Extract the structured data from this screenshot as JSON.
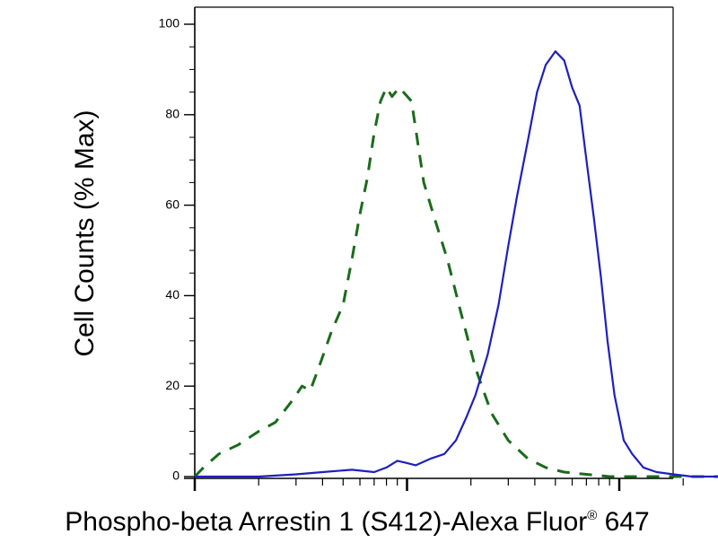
{
  "chart_data": {
    "type": "line",
    "title": "",
    "xlabel": "Phospho-beta Arrestin 1 (S412)-Alexa Fluor",
    "xlabel_registered": "®",
    "xlabel_suffix": " 647",
    "ylabel": "Cell Counts (% Max)",
    "x_scale": "log",
    "xlim": [
      1,
      1000
    ],
    "ylim": [
      0,
      100
    ],
    "yticks": [
      0,
      20,
      40,
      60,
      80,
      100
    ],
    "ytick_labels": [
      "0",
      "20",
      "40",
      "60",
      "80",
      "100"
    ],
    "grid": false,
    "legend": "none",
    "series": [
      {
        "color": "#1a6b1a",
        "style": "dashed",
        "x": [
          1.0,
          1.1,
          1.3,
          1.6,
          2.0,
          2.4,
          2.9,
          3.2,
          3.5,
          3.9,
          4.4,
          5.0,
          5.5,
          6.0,
          6.5,
          7.0,
          7.5,
          8.0,
          8.5,
          9.2,
          10.5,
          12.0,
          13.5,
          15.5,
          18.0,
          21.0,
          25.0,
          30.0,
          37.0,
          45.0,
          55.0,
          70.0,
          90.0,
          130.0,
          200.0,
          320.0,
          500.0,
          700.0
        ],
        "y": [
          0,
          2,
          5,
          7,
          10,
          12,
          17,
          20,
          19,
          25,
          32,
          38,
          48,
          58,
          66,
          76,
          83,
          86,
          84,
          86,
          83,
          65,
          57,
          48,
          36,
          24,
          14,
          8,
          4,
          2,
          1,
          0.5,
          0,
          0,
          0,
          0,
          0,
          0
        ]
      },
      {
        "color": "#1f1fbf",
        "style": "solid",
        "x": [
          1.0,
          2.0,
          3.0,
          4.0,
          5.5,
          7.0,
          8.0,
          9.0,
          10.0,
          11.0,
          13.0,
          15.0,
          17.0,
          19.0,
          21.0,
          24.0,
          27.0,
          30.0,
          33.0,
          37.0,
          41.0,
          45.0,
          50.0,
          55.0,
          60.0,
          65.0,
          70.0,
          76.0,
          82.0,
          88.0,
          95.0,
          105.0,
          115.0,
          130.0,
          150.0,
          180.0,
          220.0,
          280.0,
          400.0,
          600.0
        ],
        "y": [
          0,
          0,
          0.5,
          1,
          1.5,
          1,
          2,
          3.5,
          3,
          2.5,
          4,
          5,
          8,
          13,
          18,
          27,
          38,
          51,
          62,
          74,
          85,
          91,
          94,
          92,
          86,
          82,
          70,
          57,
          44,
          30,
          18,
          8,
          5,
          2,
          1,
          0.5,
          0,
          0,
          0,
          0
        ]
      }
    ]
  }
}
